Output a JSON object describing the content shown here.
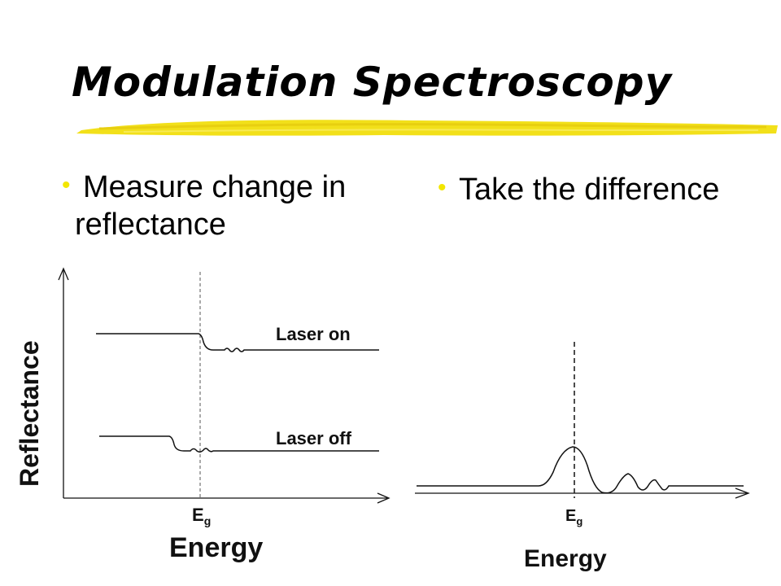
{
  "slide": {
    "title": "Modulation Spectroscopy",
    "bullets": [
      {
        "line1": "Measure change in",
        "line2": "reflectance"
      },
      {
        "line1": "Take the difference"
      }
    ]
  },
  "left_diagram": {
    "y_axis_label": "Reflectance",
    "x_axis_label": "Energy",
    "marker_label": "E",
    "marker_sub": "g",
    "curve_labels": [
      "Laser on",
      "Laser off"
    ]
  },
  "right_diagram": {
    "x_axis_label": "Energy",
    "marker_label": "E",
    "marker_sub": "g"
  },
  "colors": {
    "brush": "#f2e01a",
    "bullet_dot": "#f2e600",
    "line": "#111111"
  }
}
